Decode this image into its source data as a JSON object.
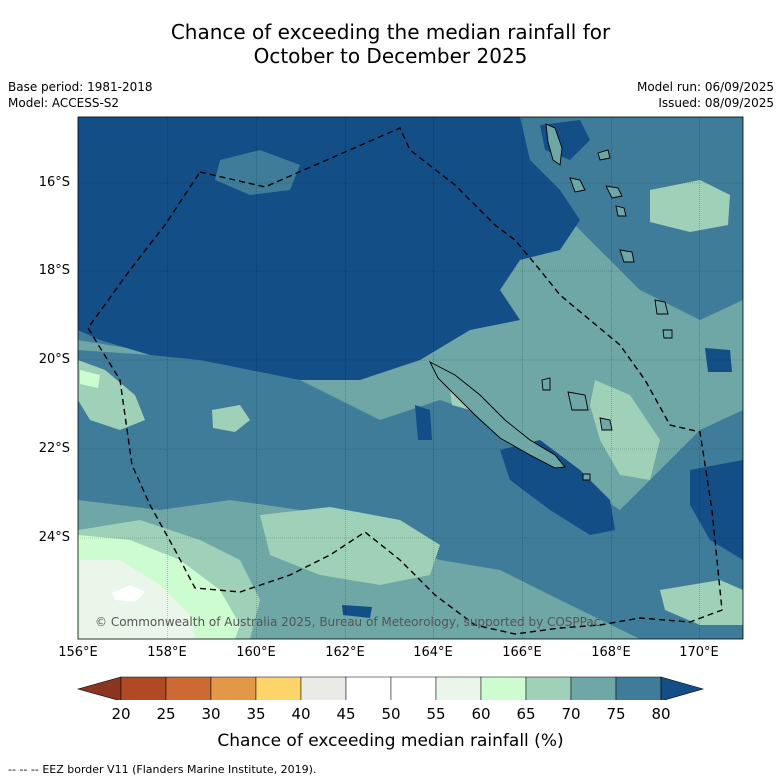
{
  "header": {
    "title_line1": "Chance of exceeding the median rainfall for",
    "title_line2": "October to December 2025",
    "base_period": "Base period: 1981-2018",
    "model": "Model: ACCESS-S2",
    "model_run": "Model run: 06/09/2025",
    "issued": "Issued: 08/09/2025"
  },
  "map": {
    "lat_labels": [
      "16°S",
      "18°S",
      "20°S",
      "22°S",
      "24°S"
    ],
    "lon_labels": [
      "156°E",
      "158°E",
      "160°E",
      "162°E",
      "164°E",
      "166°E",
      "168°E",
      "170°E"
    ],
    "copyright": "© Commonwealth of Australia 2025, Bureau of Meteorology, supported by COSPPac",
    "colors": {
      "c75_80": "#134e87",
      "c70_75": "#3f7c99",
      "c65_70": "#6fa6a6",
      "c60_65": "#9ed1b8",
      "c55_60": "#cdfcd0",
      "c50_55": "#eaf6ea",
      "land_outline": "#000000",
      "eez_border": "#000000"
    }
  },
  "colorbar": {
    "ticks": [
      "20",
      "25",
      "30",
      "35",
      "40",
      "45",
      "50",
      "55",
      "60",
      "65",
      "70",
      "75",
      "80"
    ],
    "colors": [
      "#8b3520",
      "#b04a24",
      "#cc6a34",
      "#e39848",
      "#fdd46a",
      "#ebebe6",
      "#ffffff",
      "#ffffff",
      "#eaf6ea",
      "#cdfcd0",
      "#9ed1b8",
      "#6fa6a6",
      "#3f7c99",
      "#134e87"
    ],
    "label": "Chance of exceeding median rainfall (%)"
  },
  "footer": {
    "legend_symbol": "--  --  --",
    "legend_text": "EEZ border V11 (Flanders Marine Institute, 2019)."
  }
}
